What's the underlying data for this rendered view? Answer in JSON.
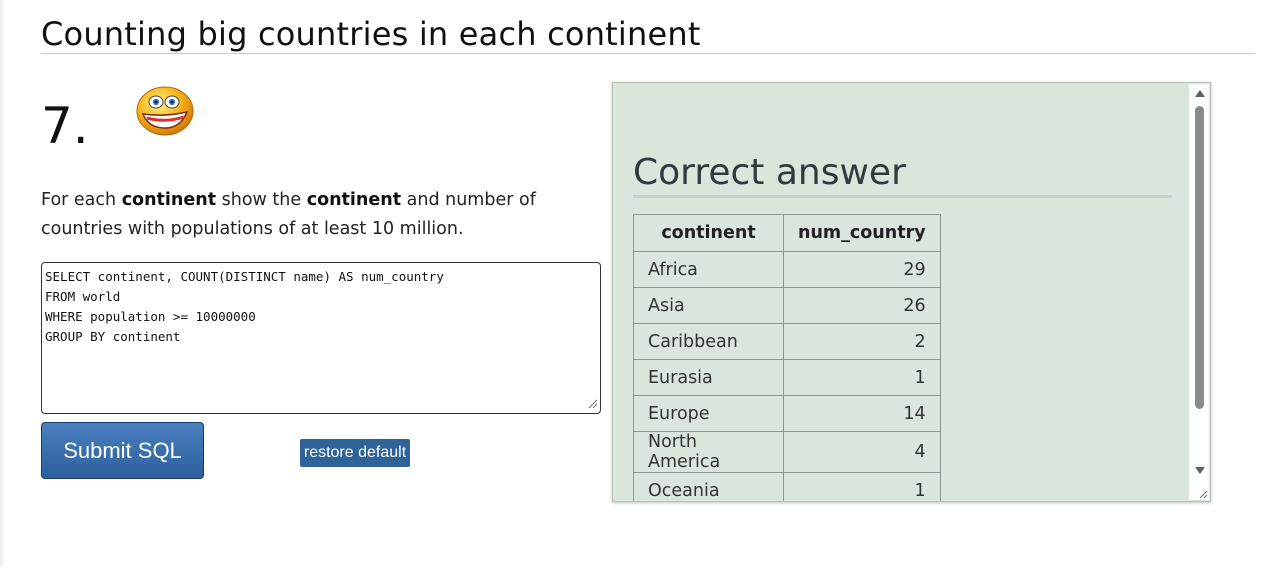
{
  "section": {
    "title": "Counting big countries in each continent"
  },
  "question": {
    "number": "7.",
    "parts": [
      "For each ",
      "continent",
      " show the ",
      "continent",
      " and number of countries with populations of at least 10 million."
    ]
  },
  "sql_editor": {
    "value": "SELECT continent, COUNT(DISTINCT name) AS num_country\nFROM world\nWHERE population >= 10000000\nGROUP BY continent"
  },
  "buttons": {
    "submit": "Submit SQL",
    "restore": "restore default"
  },
  "answer": {
    "heading": "Correct answer",
    "columns": [
      "continent",
      "num_country"
    ],
    "rows": [
      [
        "Africa",
        "29"
      ],
      [
        "Asia",
        "26"
      ],
      [
        "Caribbean",
        "2"
      ],
      [
        "Eurasia",
        "1"
      ],
      [
        "Europe",
        "14"
      ],
      [
        "North America",
        "4"
      ],
      [
        "Oceania",
        "1"
      ]
    ]
  },
  "colors": {
    "panel_bg": "#dae5dc",
    "submit_bg": "#2c5f9c",
    "restore_bg": "#2d6399"
  },
  "icons": {
    "smiley": "smiley-face-icon"
  }
}
